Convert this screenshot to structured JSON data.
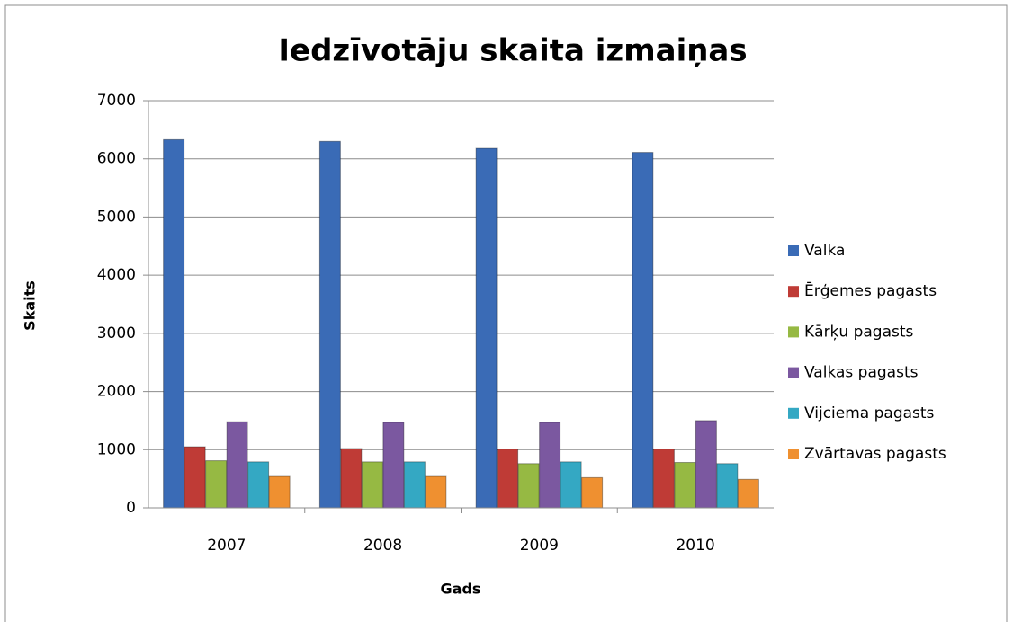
{
  "chart_data": {
    "type": "bar",
    "title": "Iedzīvotāju skaita izmaiņas",
    "x_label": "Gads",
    "y_label": "Skaits",
    "categories": [
      "2007",
      "2008",
      "2009",
      "2010"
    ],
    "series": [
      {
        "name": "Valka",
        "color": "#3a6bb6",
        "values": [
          6330,
          6300,
          6180,
          6110
        ]
      },
      {
        "name": "Ērģemes pagasts",
        "color": "#bf3b36",
        "values": [
          1050,
          1020,
          1010,
          1010
        ]
      },
      {
        "name": "Kārķu pagasts",
        "color": "#96b943",
        "values": [
          810,
          790,
          760,
          780
        ]
      },
      {
        "name": "Valkas pagasts",
        "color": "#7b58a0",
        "values": [
          1480,
          1470,
          1470,
          1500
        ]
      },
      {
        "name": "Vijciema pagasts",
        "color": "#34a8c3",
        "values": [
          790,
          790,
          790,
          760
        ]
      },
      {
        "name": "Zvārtavas pagasts",
        "color": "#ef9030",
        "values": [
          540,
          540,
          520,
          490
        ]
      }
    ],
    "ylim": [
      0,
      7000
    ],
    "yticks": [
      0,
      1000,
      2000,
      3000,
      4000,
      5000,
      6000,
      7000
    ],
    "grid": true,
    "legend": "right"
  }
}
